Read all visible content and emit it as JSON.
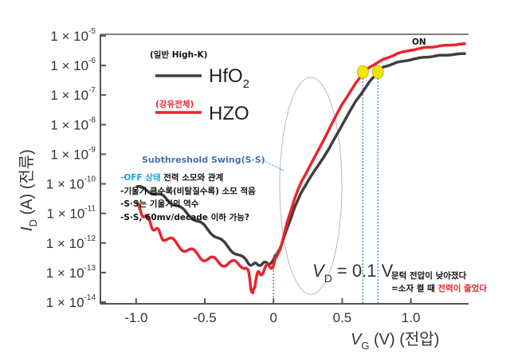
{
  "chart_data": {
    "type": "line",
    "xlabel": "V_G (V) (전압)",
    "xlabel_parts": {
      "var": "V",
      "sub": "G",
      "rest": " (V) (전압)"
    },
    "ylabel_parts": {
      "var": "I",
      "sub": "D",
      "rest": " (A) (전류)"
    },
    "xlim": [
      -1.26,
      1.42
    ],
    "ylim_log10": [
      -14,
      -5
    ],
    "yscale": "log",
    "x_ticks": [
      {
        "v": -1.0,
        "label": "-1.0"
      },
      {
        "v": -0.5,
        "label": "-0.5"
      },
      {
        "v": 0,
        "label": "0"
      },
      {
        "v": 0.5,
        "label": "0.5"
      },
      {
        "v": 1.0,
        "label": "1.0"
      }
    ],
    "y_ticks": [
      {
        "exp": -5,
        "base": "1 × 10",
        "sup": "-5"
      },
      {
        "exp": -6,
        "base": "1 × 10",
        "sup": "-6"
      },
      {
        "exp": -7,
        "base": "1 × 10",
        "sup": "-7"
      },
      {
        "exp": -8,
        "base": "1 × 10",
        "sup": "-8"
      },
      {
        "exp": -9,
        "base": "1 × 10",
        "sup": "-9"
      },
      {
        "exp": -10,
        "base": "1 × 10",
        "sup": "-10"
      },
      {
        "exp": -11,
        "base": "1 × 10",
        "sup": "-11"
      },
      {
        "exp": -12,
        "base": "1 × 10",
        "sup": "-12"
      },
      {
        "exp": -13,
        "base": "1 × 10",
        "sup": "-13"
      },
      {
        "exp": -14,
        "base": "1 × 10",
        "sup": "-14"
      }
    ],
    "series": [
      {
        "name": "HfO2",
        "legend_note": "(일반 High-K)",
        "legend_main": "HfO",
        "legend_sub": "2",
        "color": "#3f3f3f",
        "x": [
          -1.0,
          -0.9,
          -0.8,
          -0.7,
          -0.6,
          -0.5,
          -0.4,
          -0.3,
          -0.2,
          -0.15,
          -0.1,
          -0.05,
          0,
          0.05,
          0.1,
          0.15,
          0.2,
          0.3,
          0.4,
          0.5,
          0.6,
          0.7,
          0.76,
          0.8,
          0.9,
          1.0,
          1.1,
          1.2,
          1.3,
          1.4
        ],
        "log10_y": [
          -10.1,
          -10.25,
          -10.45,
          -10.75,
          -11.1,
          -11.45,
          -11.85,
          -12.25,
          -12.6,
          -12.75,
          -12.7,
          -12.7,
          -12.6,
          -12.15,
          -11.5,
          -10.85,
          -10.3,
          -9.55,
          -8.85,
          -8.0,
          -7.2,
          -6.55,
          -6.22,
          -6.05,
          -5.9,
          -5.8,
          -5.72,
          -5.67,
          -5.63,
          -5.6
        ]
      },
      {
        "name": "HZO",
        "legend_note": "(강유전체)",
        "legend_main": "HZO",
        "legend_sub": "",
        "color": "#e8262b",
        "x": [
          -1.0,
          -0.95,
          -0.9,
          -0.85,
          -0.8,
          -0.7,
          -0.6,
          -0.5,
          -0.4,
          -0.3,
          -0.2,
          -0.17,
          -0.15,
          -0.13,
          -0.1,
          -0.05,
          0,
          0.05,
          0.1,
          0.15,
          0.2,
          0.3,
          0.4,
          0.5,
          0.6,
          0.65,
          0.7,
          0.8,
          0.9,
          1.0,
          1.1,
          1.2,
          1.3,
          1.4
        ],
        "log10_y": [
          -10.7,
          -11.0,
          -11.3,
          -11.6,
          -11.8,
          -12.05,
          -12.3,
          -12.5,
          -12.65,
          -12.7,
          -12.75,
          -13.3,
          -13.8,
          -13.2,
          -13.0,
          -12.85,
          -12.7,
          -12.2,
          -11.3,
          -10.55,
          -9.95,
          -9.1,
          -8.2,
          -7.3,
          -6.6,
          -6.25,
          -6.05,
          -5.8,
          -5.6,
          -5.48,
          -5.4,
          -5.35,
          -5.3,
          -5.27
        ]
      }
    ],
    "markers": [
      {
        "name": "HZO threshold",
        "x": 0.65,
        "log10_y": -6.22,
        "color": "#f2e600"
      },
      {
        "name": "HfO2 threshold",
        "x": 0.76,
        "log10_y": -6.22,
        "color": "#f2e600"
      }
    ],
    "vlines": [
      0,
      0.65,
      0.76
    ],
    "annotations": {
      "on": "ON",
      "ss_title": "Subthreshold Swing(S·S)",
      "bullet1_hl": "-OFF 상태",
      "bullet1_rest": " 전력 소모와 관계",
      "bullet2": "-기울기 클수록(비탈질수록) 소모 적음",
      "bullet3": "-S·S는 기울기의 역수",
      "bullet4": "-S·S, 60mv/decade 이하 가능?",
      "vd_var": "V",
      "vd_sub": "D",
      "vd_rest": " = 0.1 V",
      "note1": "문턱 전압이 낮아졌다",
      "note2_a": "=소자 켤 때 ",
      "note2_b": "전력이 줄었다"
    },
    "colors": {
      "ss_title": "#4a6fb0",
      "off_highlight": "#1aa3e8",
      "red_text": "#e8262b",
      "axis": "#555555"
    }
  }
}
